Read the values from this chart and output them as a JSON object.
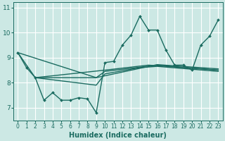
{
  "xlabel": "Humidex (Indice chaleur)",
  "xlim": [
    -0.5,
    23.5
  ],
  "ylim": [
    6.5,
    11.2
  ],
  "yticks": [
    7,
    8,
    9,
    10,
    11
  ],
  "xticks": [
    0,
    1,
    2,
    3,
    4,
    5,
    6,
    7,
    8,
    9,
    10,
    11,
    12,
    13,
    14,
    15,
    16,
    17,
    18,
    19,
    20,
    21,
    22,
    23
  ],
  "background_color": "#cce8e4",
  "grid_color": "#ffffff",
  "line_color": "#1a6b60",
  "lines": [
    {
      "x": [
        0,
        1,
        2,
        3,
        4,
        5,
        6,
        7,
        8,
        9,
        10,
        11,
        12,
        13,
        14,
        15,
        16,
        17,
        18,
        19,
        20,
        21,
        22,
        23
      ],
      "y": [
        9.2,
        8.6,
        8.2,
        7.3,
        7.6,
        7.3,
        7.3,
        7.4,
        7.35,
        6.8,
        8.8,
        8.85,
        9.5,
        9.9,
        10.65,
        10.1,
        10.1,
        9.3,
        8.7,
        8.7,
        8.5,
        9.5,
        9.85,
        10.5
      ],
      "has_markers": true
    },
    {
      "x": [
        0,
        2,
        10,
        15,
        23
      ],
      "y": [
        9.2,
        8.2,
        8.5,
        8.7,
        8.5
      ],
      "has_markers": false
    },
    {
      "x": [
        2,
        9,
        10,
        16,
        23
      ],
      "y": [
        8.2,
        8.2,
        8.45,
        8.7,
        8.5
      ],
      "has_markers": false
    },
    {
      "x": [
        2,
        9,
        10,
        14,
        16,
        23
      ],
      "y": [
        8.2,
        7.9,
        8.35,
        8.6,
        8.65,
        8.45
      ],
      "has_markers": false
    },
    {
      "x": [
        0,
        9,
        16,
        23
      ],
      "y": [
        9.2,
        8.2,
        8.72,
        8.55
      ],
      "has_markers": false
    }
  ]
}
